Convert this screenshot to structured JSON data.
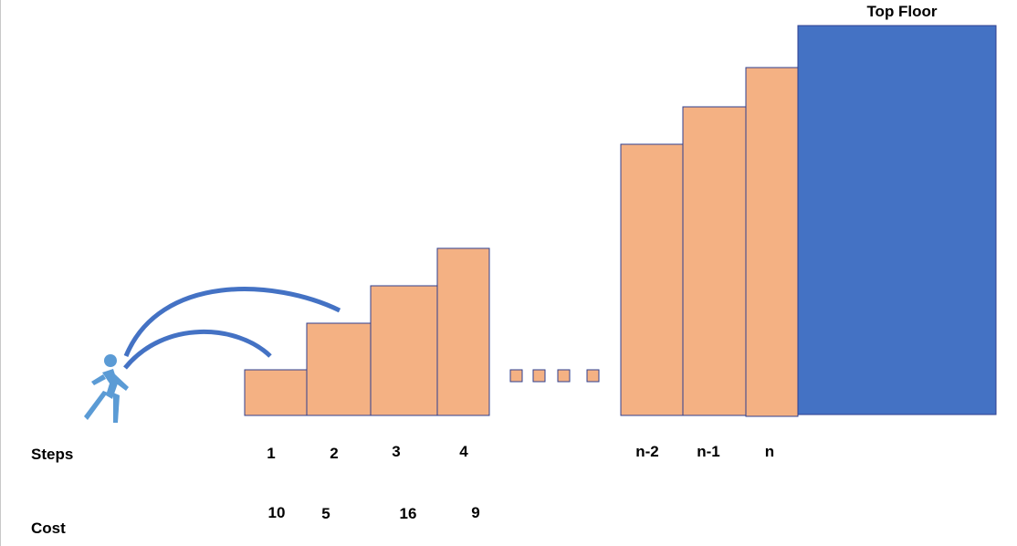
{
  "title": "Top Floor",
  "steps_label": "Steps",
  "cost_label": "Cost",
  "steps": [
    {
      "label": "1",
      "cost": "10"
    },
    {
      "label": "2",
      "cost": "5"
    },
    {
      "label": "3",
      "cost": "16"
    },
    {
      "label": "4",
      "cost": "9"
    },
    {
      "label": "n-2",
      "cost": ""
    },
    {
      "label": "n-1",
      "cost": ""
    },
    {
      "label": "n",
      "cost": ""
    }
  ],
  "colors": {
    "step": "#F4B183",
    "step_border": "#2F3F8F",
    "top_floor": "#4472C4",
    "arc": "#4472C4",
    "person": "#5B9BD5"
  },
  "icons": [
    "person-walking-icon"
  ]
}
